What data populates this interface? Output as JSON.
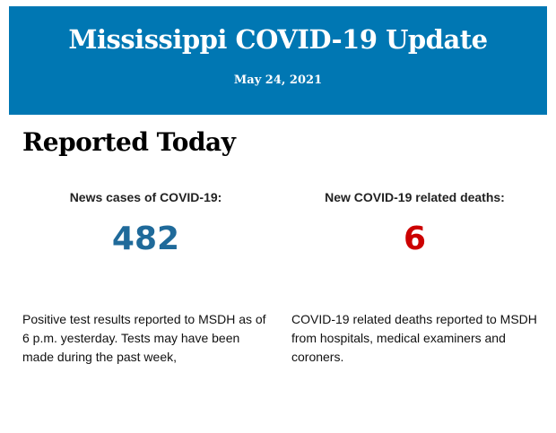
{
  "header": {
    "title": "Mississippi COVID-19 Update",
    "date": "May 24, 2021",
    "background_color": "#0077b3"
  },
  "section_title": "Reported Today",
  "stats": [
    {
      "label": "News cases of COVID-19:",
      "value": "482",
      "color": "#1f6a9a",
      "description": "Positive test results reported to MSDH as of 6 p.m. yesterday. Tests may have been made during the past week,"
    },
    {
      "label": "New COVID-19 related deaths:",
      "value": "6",
      "color": "#cc0000",
      "description": "COVID-19 related deaths reported to MSDH from hospitals, medical examiners and coroners."
    }
  ]
}
